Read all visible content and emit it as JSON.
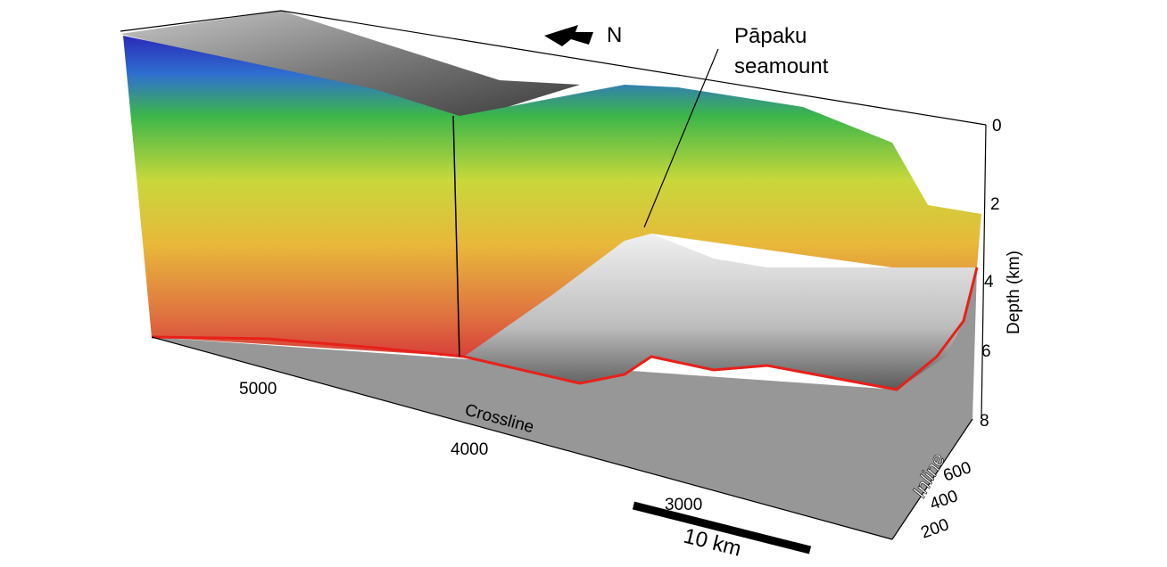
{
  "north_label": "N",
  "annotation": {
    "lines": [
      "Pāpaku",
      "seamount"
    ]
  },
  "depth_axis": {
    "label": "Depth (km)",
    "ticks": [
      "0",
      "2",
      "4",
      "6",
      "8"
    ]
  },
  "crossline_axis": {
    "label": "Crossline",
    "ticks": [
      "5000",
      "4000",
      "3000"
    ]
  },
  "inline_axis": {
    "label": "Inline",
    "ticks": [
      "600",
      "400",
      "200"
    ]
  },
  "scale_bar": {
    "label": "10 km"
  }
}
